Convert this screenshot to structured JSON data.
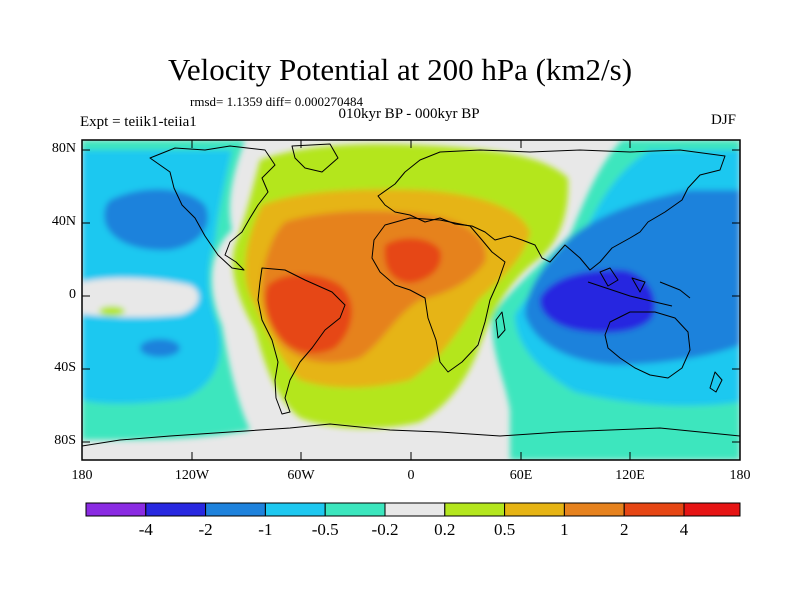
{
  "header": {
    "title": "Velocity Potential at 200 hPa (km2/s)",
    "stats": "rmsd= 1.1359 diff= 0.000270484",
    "subtitle": "010kyr BP - 000kyr BP",
    "experiment": "Expt = teiik1-teiia1",
    "season": "DJF"
  },
  "axes": {
    "lat_ticks": [
      "80N",
      "40N",
      "0",
      "40S",
      "80S"
    ],
    "lon_ticks": [
      "180",
      "120W",
      "60W",
      "0",
      "60E",
      "120E",
      "180"
    ]
  },
  "colorbar": {
    "colors": [
      "#8a2be2",
      "#2828e0",
      "#1e82dc",
      "#1ec8f0",
      "#3ce6be",
      "#e8e8e8",
      "#b4e61e",
      "#e6b414",
      "#e6821e",
      "#e64614",
      "#e61414"
    ],
    "labels": [
      "-4",
      "-2",
      "-1",
      "-0.5",
      "-0.2",
      "0.2",
      "0.5",
      "1",
      "2",
      "4"
    ]
  },
  "colors": {
    "background": "#e8e8e8",
    "coastline": "#000000",
    "frame": "#000000"
  }
}
